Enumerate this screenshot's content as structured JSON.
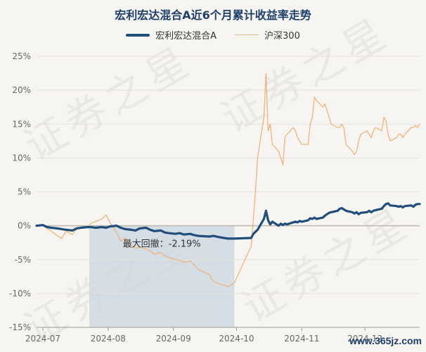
{
  "chart_data": {
    "type": "line",
    "title": "宏利宏达混合A近6个月累计收益率走势",
    "y_unit": "%",
    "ylim": [
      -15,
      25
    ],
    "yticks": [
      -15,
      -10,
      -5,
      0,
      5,
      10,
      15,
      20,
      25
    ],
    "xticks": [
      "2024-07",
      "2024-08",
      "2024-09",
      "2024-10",
      "2024-11",
      "2024-12"
    ],
    "x_start": "2024-06-28",
    "x_end": "2024-12-27",
    "grid": true,
    "legend_position": "top-center",
    "series": [
      {
        "name": "宏利宏达混合A",
        "color": "#1f4e7a",
        "points": [
          [
            "2024-06-28",
            0.0
          ],
          [
            "2024-07-01",
            0.1
          ],
          [
            "2024-07-03",
            -0.2
          ],
          [
            "2024-07-05",
            -0.3
          ],
          [
            "2024-07-08",
            -0.4
          ],
          [
            "2024-07-10",
            -0.5
          ],
          [
            "2024-07-12",
            -0.6
          ],
          [
            "2024-07-15",
            -0.7
          ],
          [
            "2024-07-17",
            -0.4
          ],
          [
            "2024-07-19",
            -0.3
          ],
          [
            "2024-07-22",
            -0.2
          ],
          [
            "2024-07-24",
            -0.2
          ],
          [
            "2024-07-26",
            -0.3
          ],
          [
            "2024-07-29",
            -0.2
          ],
          [
            "2024-07-31",
            -0.3
          ],
          [
            "2024-08-02",
            -0.1
          ],
          [
            "2024-08-05",
            0.0
          ],
          [
            "2024-08-07",
            -0.3
          ],
          [
            "2024-08-09",
            -0.5
          ],
          [
            "2024-08-12",
            -0.6
          ],
          [
            "2024-08-14",
            -0.7
          ],
          [
            "2024-08-16",
            -0.4
          ],
          [
            "2024-08-19",
            -0.3
          ],
          [
            "2024-08-21",
            -0.6
          ],
          [
            "2024-08-23",
            -0.8
          ],
          [
            "2024-08-26",
            -0.7
          ],
          [
            "2024-08-28",
            -1.0
          ],
          [
            "2024-08-30",
            -1.1
          ],
          [
            "2024-09-02",
            -1.2
          ],
          [
            "2024-09-04",
            -1.1
          ],
          [
            "2024-09-06",
            -1.3
          ],
          [
            "2024-09-09",
            -1.2
          ],
          [
            "2024-09-11",
            -1.4
          ],
          [
            "2024-09-13",
            -1.5
          ],
          [
            "2024-09-18",
            -1.6
          ],
          [
            "2024-09-20",
            -1.5
          ],
          [
            "2024-09-23",
            -1.7
          ],
          [
            "2024-09-25",
            -1.8
          ],
          [
            "2024-09-27",
            -1.9
          ],
          [
            "2024-09-30",
            -1.9
          ],
          [
            "2024-10-08",
            -1.8
          ],
          [
            "2024-10-09",
            -1.2
          ],
          [
            "2024-10-10",
            -0.9
          ],
          [
            "2024-10-11",
            -0.6
          ],
          [
            "2024-10-14",
            1.0
          ],
          [
            "2024-10-15",
            2.2
          ],
          [
            "2024-10-16",
            0.8
          ],
          [
            "2024-10-17",
            0.2
          ],
          [
            "2024-10-18",
            0.6
          ],
          [
            "2024-10-21",
            0.0
          ],
          [
            "2024-10-22",
            0.3
          ],
          [
            "2024-10-23",
            0.1
          ],
          [
            "2024-10-24",
            0.3
          ],
          [
            "2024-10-25",
            0.2
          ],
          [
            "2024-10-28",
            0.5
          ],
          [
            "2024-10-29",
            0.6
          ],
          [
            "2024-10-30",
            0.5
          ],
          [
            "2024-10-31",
            0.7
          ],
          [
            "2024-11-01",
            0.6
          ],
          [
            "2024-11-04",
            0.8
          ],
          [
            "2024-11-05",
            1.1
          ],
          [
            "2024-11-06",
            1.0
          ],
          [
            "2024-11-07",
            1.2
          ],
          [
            "2024-11-08",
            1.0
          ],
          [
            "2024-11-11",
            1.2
          ],
          [
            "2024-11-12",
            1.5
          ],
          [
            "2024-11-13",
            1.7
          ],
          [
            "2024-11-14",
            1.9
          ],
          [
            "2024-11-15",
            2.0
          ],
          [
            "2024-11-18",
            2.2
          ],
          [
            "2024-11-19",
            2.5
          ],
          [
            "2024-11-20",
            2.6
          ],
          [
            "2024-11-21",
            2.4
          ],
          [
            "2024-11-22",
            2.2
          ],
          [
            "2024-11-25",
            2.0
          ],
          [
            "2024-11-26",
            1.8
          ],
          [
            "2024-11-27",
            2.0
          ],
          [
            "2024-11-28",
            1.7
          ],
          [
            "2024-11-29",
            1.9
          ],
          [
            "2024-12-02",
            2.0
          ],
          [
            "2024-12-03",
            2.2
          ],
          [
            "2024-12-04",
            2.0
          ],
          [
            "2024-12-05",
            2.2
          ],
          [
            "2024-12-06",
            2.3
          ],
          [
            "2024-12-09",
            2.5
          ],
          [
            "2024-12-10",
            2.9
          ],
          [
            "2024-12-11",
            3.2
          ],
          [
            "2024-12-12",
            3.3
          ],
          [
            "2024-12-13",
            3.0
          ],
          [
            "2024-12-16",
            2.9
          ],
          [
            "2024-12-17",
            2.8
          ],
          [
            "2024-12-18",
            2.9
          ],
          [
            "2024-12-19",
            2.7
          ],
          [
            "2024-12-20",
            2.9
          ],
          [
            "2024-12-23",
            3.0
          ],
          [
            "2024-12-24",
            2.8
          ],
          [
            "2024-12-25",
            3.1
          ],
          [
            "2024-12-26",
            3.2
          ],
          [
            "2024-12-27",
            3.2
          ]
        ]
      },
      {
        "name": "沪深300",
        "color": "#f0b47a",
        "points": [
          [
            "2024-06-28",
            0.0
          ],
          [
            "2024-07-01",
            0.0
          ],
          [
            "2024-07-03",
            -0.4
          ],
          [
            "2024-07-05",
            -0.8
          ],
          [
            "2024-07-08",
            -1.5
          ],
          [
            "2024-07-10",
            -1.9
          ],
          [
            "2024-07-12",
            -0.8
          ],
          [
            "2024-07-15",
            -1.3
          ],
          [
            "2024-07-17",
            -0.5
          ],
          [
            "2024-07-19",
            -0.2
          ],
          [
            "2024-07-22",
            -0.3
          ],
          [
            "2024-07-24",
            0.4
          ],
          [
            "2024-07-26",
            0.6
          ],
          [
            "2024-07-29",
            1.0
          ],
          [
            "2024-07-31",
            1.6
          ],
          [
            "2024-08-02",
            0.4
          ],
          [
            "2024-08-05",
            -1.0
          ],
          [
            "2024-08-07",
            -2.3
          ],
          [
            "2024-08-09",
            -1.8
          ],
          [
            "2024-08-12",
            -3.0
          ],
          [
            "2024-08-14",
            -3.3
          ],
          [
            "2024-08-16",
            -3.2
          ],
          [
            "2024-08-19",
            -3.4
          ],
          [
            "2024-08-21",
            -3.8
          ],
          [
            "2024-08-23",
            -4.2
          ],
          [
            "2024-08-26",
            -3.9
          ],
          [
            "2024-08-28",
            -4.5
          ],
          [
            "2024-08-30",
            -4.7
          ],
          [
            "2024-09-02",
            -5.0
          ],
          [
            "2024-09-04",
            -5.1
          ],
          [
            "2024-09-06",
            -5.4
          ],
          [
            "2024-09-09",
            -5.2
          ],
          [
            "2024-09-11",
            -5.8
          ],
          [
            "2024-09-13",
            -6.5
          ],
          [
            "2024-09-18",
            -7.2
          ],
          [
            "2024-09-20",
            -8.2
          ],
          [
            "2024-09-23",
            -8.6
          ],
          [
            "2024-09-25",
            -8.8
          ],
          [
            "2024-09-27",
            -9.0
          ],
          [
            "2024-09-30",
            -8.4
          ],
          [
            "2024-10-08",
            -3.0
          ],
          [
            "2024-10-09",
            1.0
          ],
          [
            "2024-10-10",
            5.0
          ],
          [
            "2024-10-11",
            10.0
          ],
          [
            "2024-10-14",
            16.0
          ],
          [
            "2024-10-15",
            22.5
          ],
          [
            "2024-10-16",
            14.0
          ],
          [
            "2024-10-17",
            15.0
          ],
          [
            "2024-10-18",
            12.0
          ],
          [
            "2024-10-21",
            11.0
          ],
          [
            "2024-10-22",
            10.0
          ],
          [
            "2024-10-23",
            9.0
          ],
          [
            "2024-10-24",
            13.0
          ],
          [
            "2024-10-25",
            13.5
          ],
          [
            "2024-10-28",
            14.5
          ],
          [
            "2024-10-29",
            14.0
          ],
          [
            "2024-10-30",
            13.0
          ],
          [
            "2024-10-31",
            12.5
          ],
          [
            "2024-11-01",
            12.0
          ],
          [
            "2024-11-04",
            12.0
          ],
          [
            "2024-11-05",
            15.0
          ],
          [
            "2024-11-06",
            16.0
          ],
          [
            "2024-11-07",
            19.0
          ],
          [
            "2024-11-08",
            18.5
          ],
          [
            "2024-11-11",
            17.5
          ],
          [
            "2024-11-12",
            18.0
          ],
          [
            "2024-11-13",
            17.0
          ],
          [
            "2024-11-14",
            16.0
          ],
          [
            "2024-11-15",
            15.0
          ],
          [
            "2024-11-18",
            14.5
          ],
          [
            "2024-11-19",
            14.5
          ],
          [
            "2024-11-20",
            15.0
          ],
          [
            "2024-11-21",
            14.5
          ],
          [
            "2024-11-22",
            12.0
          ],
          [
            "2024-11-25",
            11.0
          ],
          [
            "2024-11-26",
            10.5
          ],
          [
            "2024-11-27",
            11.0
          ],
          [
            "2024-11-28",
            12.5
          ],
          [
            "2024-11-29",
            13.5
          ],
          [
            "2024-12-02",
            14.0
          ],
          [
            "2024-12-03",
            13.5
          ],
          [
            "2024-12-04",
            13.0
          ],
          [
            "2024-12-05",
            14.0
          ],
          [
            "2024-12-06",
            14.5
          ],
          [
            "2024-12-09",
            14.0
          ],
          [
            "2024-12-10",
            16.0
          ],
          [
            "2024-12-11",
            15.5
          ],
          [
            "2024-12-12",
            13.5
          ],
          [
            "2024-12-13",
            12.5
          ],
          [
            "2024-12-16",
            13.0
          ],
          [
            "2024-12-17",
            13.5
          ],
          [
            "2024-12-18",
            13.5
          ],
          [
            "2024-12-19",
            13.0
          ],
          [
            "2024-12-20",
            13.5
          ],
          [
            "2024-12-23",
            14.5
          ],
          [
            "2024-12-24",
            14.5
          ],
          [
            "2024-12-25",
            14.8
          ],
          [
            "2024-12-26",
            14.5
          ],
          [
            "2024-12-27",
            15.0
          ]
        ]
      }
    ],
    "annotation": {
      "label": "最大回撤：-2.19%",
      "start": "2024-07-23",
      "end": "2024-09-30"
    }
  },
  "watermark": "证券之星",
  "site_label": "www.365jz.com",
  "colors": {
    "background": "#f7f5f2",
    "title": "#1f3f6b",
    "grid": "#e4e1dc",
    "drawdown_fill": "#c9d6e0"
  }
}
